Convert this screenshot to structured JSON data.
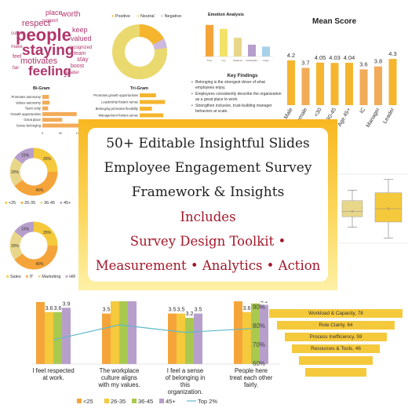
{
  "word_cloud": {
    "words": [
      "respect",
      "place",
      "worth",
      "people",
      "keep",
      "valued",
      "culture",
      "staying",
      "motivates",
      "recognized",
      "feeling",
      "team",
      "stay",
      "boost",
      "make",
      "feel",
      "leader",
      "fair",
      "support"
    ],
    "color": "#b0366c"
  },
  "tri_donut": {
    "legend": [
      "Positive",
      "Neutral",
      "Negative"
    ],
    "colors": [
      "#f5b52e",
      "#ead96e",
      "#cdb8de"
    ]
  },
  "emotion": {
    "title": "Emotion Analysis",
    "categories": [
      "Trust",
      "Joy",
      "Sadness",
      "Anticipation",
      "Anger"
    ],
    "values": [
      32,
      28,
      19,
      12,
      10
    ],
    "colors": [
      "#f5a43a",
      "#f2e26a",
      "#e8d78a",
      "#b79fcc",
      "#a7d1e8"
    ]
  },
  "key_findings": {
    "title": "Key Findings",
    "items": [
      "Belonging is the strongest driver of what employees enjoy.",
      "Employees consistently describe the organization as a great place to work.",
      "Strengthen inclusive, trust-building manager behaviors at scale."
    ]
  },
  "mean_score": {
    "title": "Mean Score",
    "labels": [
      "Male",
      "Female",
      "<30",
      "30-45",
      "Age 45+",
      "IC",
      "Manager",
      "Leader"
    ],
    "values": [
      4.2,
      3.7,
      4.05,
      4.03,
      4.04,
      3.6,
      3.8,
      4.3
    ],
    "value_labels": [
      "4.2",
      "3.7",
      "4.05",
      "4.03",
      "4.04",
      "3.6",
      "3.8",
      "4.3"
    ],
    "colors": [
      "#f5b52e",
      "#f2ab58",
      "#f5b52e",
      "#f5b52e",
      "#f5b52e",
      "#f2ab58",
      "#f2ab58",
      "#f5b52e"
    ]
  },
  "bigram": {
    "title": "Bi-Gram",
    "labels": [
      "Promotes autonomy",
      "Values autonomy",
      "Team unity",
      "Growth opportunities",
      "Great place",
      "Sense belonging"
    ],
    "values": [
      18,
      20,
      16,
      95,
      55,
      100
    ],
    "axis_ticks": [
      "0",
      "50",
      "100"
    ],
    "color": "#f2ab58"
  },
  "trigram": {
    "title": "Tri-Gram",
    "labels": [
      "Promotes growth opportunities",
      "Leadership fosters sense",
      "Belonging promotes flexibility",
      "Management fosters sense"
    ],
    "values": [
      40,
      62,
      30,
      58
    ],
    "color": "#f5b52e"
  },
  "donut_age": {
    "slices": [
      {
        "label": "25%",
        "value": 25
      },
      {
        "label": "40%",
        "value": 40
      },
      {
        "label": "20%",
        "value": 20
      },
      {
        "label": "15%",
        "value": 15
      }
    ],
    "colors": [
      "#f5c93c",
      "#f5a43a",
      "#e8d78a",
      "#b79fcc"
    ],
    "legend": [
      "<25",
      "26-35",
      "36-45",
      "45+"
    ]
  },
  "donut_dept": {
    "slices": [
      {
        "label": "25%",
        "value": 25
      },
      {
        "label": "40%",
        "value": 40
      },
      {
        "label": "20%",
        "value": 20
      },
      {
        "label": "15%",
        "value": 15
      }
    ],
    "colors": [
      "#f5c93c",
      "#f5a43a",
      "#e8d78a",
      "#b79fcc"
    ],
    "legend": [
      "Sales",
      "IT",
      "Marketing",
      "HR"
    ]
  },
  "banner": {
    "line1": "50+ Editable Insightful Slides",
    "line2": "Employee Engagement Survey",
    "line3": "Framework & Insights",
    "line4": "Includes",
    "line5": "Survey Design Toolkit •",
    "line6": "Measurement • Analytics • Action"
  },
  "boxplot": {
    "boxes": [
      {
        "min": 3.0,
        "q1": 3.4,
        "median": 3.6,
        "q3": 4.0,
        "max": 4.4
      },
      {
        "min": 2.6,
        "q1": 3.2,
        "median": 3.7,
        "q3": 4.3,
        "max": 4.8
      }
    ],
    "colors": [
      "#e8d78a",
      "#f5c93c"
    ]
  },
  "chart_data": {
    "type": "bar",
    "categories": [
      "I feel respected at work.",
      "The workplace culture aligns with my values.",
      "I feel a sense of belonging in this organization.",
      "People here treat each other fairly."
    ],
    "series": [
      {
        "name": "<25",
        "values": [
          4.3,
          3.5,
          3.5,
          4.5
        ],
        "color": "#f5a43a"
      },
      {
        "name": "26-35",
        "values": [
          3.6,
          4.4,
          3.5,
          3.6
        ],
        "color": "#f5c93c"
      },
      {
        "name": "36-45",
        "values": [
          3.6,
          4.4,
          3.2,
          4.2
        ],
        "color": "#a9c94e"
      },
      {
        "name": "45+",
        "values": [
          3.9,
          4.4,
          3.5,
          4.1
        ],
        "color": "#b79fcc"
      }
    ],
    "value_labels": [
      [
        "4.3",
        "3.6",
        "3.6",
        "3.9"
      ],
      [
        "3.5",
        "4.4",
        "4.4",
        "4.4"
      ],
      [
        "3.5",
        "3.5",
        "3.2",
        "3.5"
      ],
      [
        "4.5",
        "3.6",
        "4.2",
        "4.1"
      ]
    ],
    "line": {
      "name": "Top 2%",
      "values": [
        72,
        80,
        76,
        78
      ],
      "color": "#5fb8c9"
    },
    "ylim": [
      0,
      5
    ],
    "y2_ticks": [
      "90%",
      "80%",
      "70%",
      "60%"
    ]
  },
  "funnel": {
    "items": [
      "Workload & Capacity, 78",
      "Role Clarity, 64",
      "Process Inefficiency, 59",
      "Resources & Tools, 46",
      "",
      ""
    ],
    "color": "#f5c93c"
  }
}
